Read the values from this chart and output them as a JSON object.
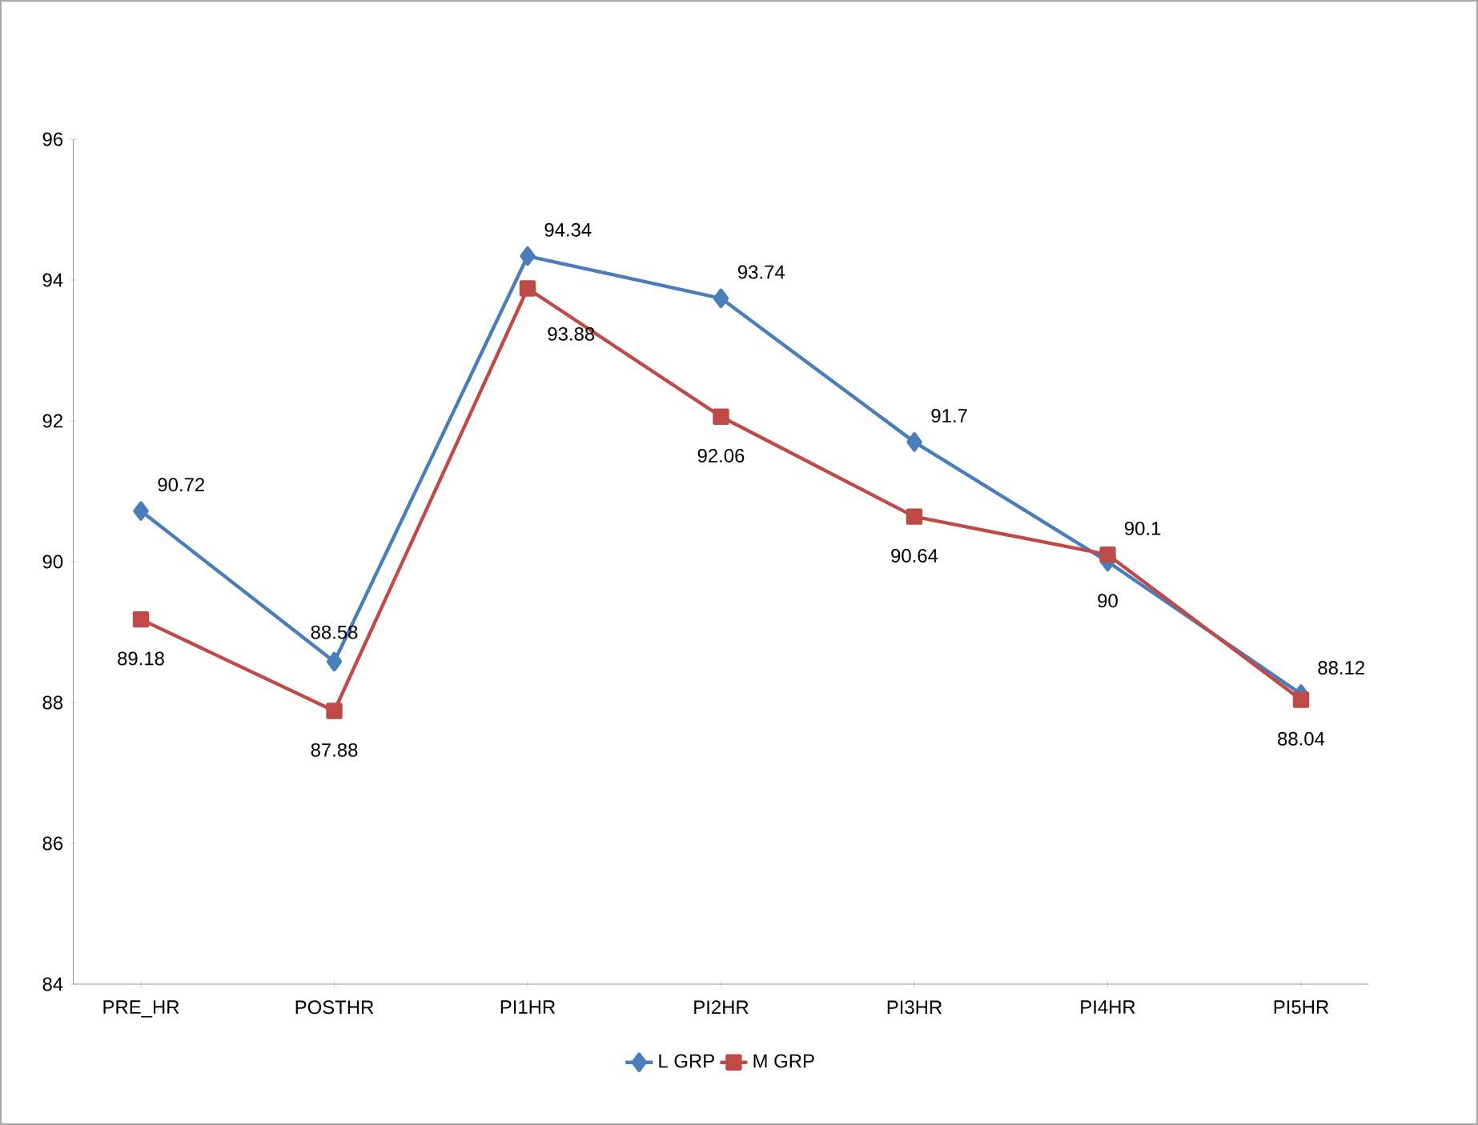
{
  "chart_data": {
    "type": "line",
    "categories": [
      "PRE_HR",
      "POSTHR",
      "PI1HR",
      "PI2HR",
      "PI3HR",
      "PI4HR",
      "PI5HR"
    ],
    "series": [
      {
        "name": "L GRP",
        "color": "#4a7ebb",
        "marker": "diamond",
        "values": [
          90.72,
          88.58,
          94.34,
          93.74,
          91.7,
          90,
          88.12
        ]
      },
      {
        "name": "M GRP",
        "color": "#be4b48",
        "marker": "square",
        "values": [
          89.18,
          87.88,
          93.88,
          92.06,
          90.64,
          90.1,
          88.04
        ]
      }
    ],
    "ylim": [
      84,
      96
    ],
    "yticks": [
      84,
      86,
      88,
      90,
      92,
      94,
      96
    ],
    "data_labels": true,
    "grid": false,
    "legend": "bottom"
  }
}
